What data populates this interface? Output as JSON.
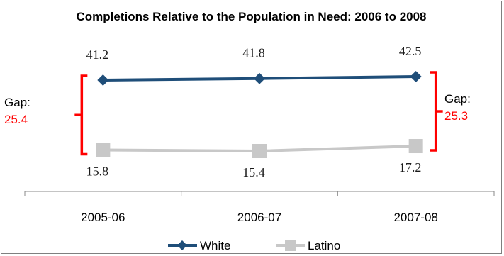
{
  "chart_data": {
    "type": "line",
    "title": "Completions Relative to the Population in Need: 2006 to 2008",
    "categories": [
      "2005-06",
      "2006-07",
      "2007-08"
    ],
    "series": [
      {
        "name": "White",
        "values": [
          41.2,
          41.8,
          42.5
        ],
        "color": "#1f4e79",
        "marker": "diamond"
      },
      {
        "name": "Latino",
        "values": [
          15.8,
          15.4,
          17.2
        ],
        "color": "#c8c8c8",
        "marker": "square"
      }
    ],
    "annotations": [
      {
        "label": "Gap:",
        "value": "25.4",
        "category": "2005-06",
        "side": "left"
      },
      {
        "label": "Gap:",
        "value": "25.3",
        "category": "2007-08",
        "side": "right"
      }
    ],
    "accent_color": "#ff0000",
    "legend_position": "bottom",
    "grid": false,
    "xlabel": "",
    "ylabel": ""
  }
}
